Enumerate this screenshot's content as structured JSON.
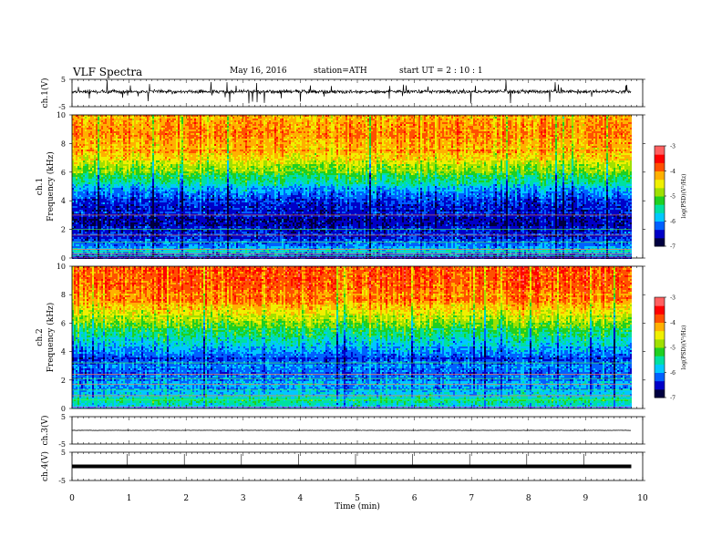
{
  "header": {
    "title": "VLF Spectra",
    "date": "May 16, 2016",
    "station": "station=ATH",
    "start": "start  UT =   2 : 10 : 1"
  },
  "chart_data": [
    {
      "type": "line",
      "name": "ch1-waveform",
      "ylabel": "ch.1(V)",
      "ylim": [
        -5,
        5
      ],
      "yticks": [
        "5",
        "-5"
      ],
      "xlim": [
        0,
        10
      ],
      "description_level_V": 0.5
    },
    {
      "type": "heatmap",
      "name": "ch1-spectrogram",
      "ylabel": "ch.1\nFrequency  (kHz)",
      "ylim": [
        0,
        10
      ],
      "yticks": [
        "0",
        "2",
        "4",
        "6",
        "8",
        "10"
      ],
      "xlim": [
        0,
        10
      ],
      "colorbar": {
        "label": "log(PSD)(V²/Hz)",
        "range": [
          -7,
          -3
        ],
        "ticks": [
          "-3",
          "-4",
          "-5",
          "-6",
          "-7"
        ]
      },
      "profile_freq_kHz": [
        0,
        0.5,
        1,
        1.5,
        2,
        2.5,
        3,
        3.5,
        4,
        4.5,
        5,
        5.5,
        6,
        6.5,
        7,
        7.5,
        8,
        8.5,
        9,
        9.5,
        10
      ],
      "profile_logPSD": [
        -6.4,
        -5.8,
        -6.2,
        -6.3,
        -6.5,
        -6.6,
        -6.5,
        -6.4,
        -6.3,
        -6.1,
        -5.8,
        -5.4,
        -5.0,
        -4.7,
        -4.4,
        -4.2,
        -4.1,
        -4.0,
        -4.0,
        -4.1,
        -4.1
      ]
    },
    {
      "type": "heatmap",
      "name": "ch2-spectrogram",
      "ylabel": "ch.2\nFrequency  (kHz)",
      "ylim": [
        0,
        10
      ],
      "yticks": [
        "0",
        "2",
        "4",
        "6",
        "8",
        "10"
      ],
      "xlim": [
        0,
        10
      ],
      "colorbar": {
        "label": "log(PSD)(V²/Hz)",
        "range": [
          -7,
          -3
        ],
        "ticks": [
          "-3",
          "-4",
          "-5",
          "-6",
          "-7"
        ]
      },
      "profile_freq_kHz": [
        0,
        0.5,
        1,
        1.5,
        2,
        2.5,
        3,
        3.5,
        4,
        4.5,
        5,
        5.5,
        6,
        6.5,
        7,
        7.5,
        8,
        8.5,
        9,
        9.5,
        10
      ],
      "profile_logPSD": [
        -5.9,
        -5.4,
        -5.8,
        -5.9,
        -6.0,
        -6.1,
        -6.0,
        -6.3,
        -5.9,
        -5.7,
        -5.5,
        -5.2,
        -4.9,
        -4.6,
        -4.3,
        -4.1,
        -3.9,
        -3.8,
        -3.8,
        -3.8,
        -3.9
      ]
    },
    {
      "type": "line",
      "name": "ch3-waveform",
      "ylabel": "ch.3(V)",
      "ylim": [
        -5,
        5
      ],
      "yticks": [
        "5",
        "-5"
      ],
      "xlim": [
        0,
        10
      ],
      "description_level_V": 0.0
    },
    {
      "type": "line",
      "name": "ch4-waveform",
      "ylabel": "ch.4(V)",
      "ylim": [
        -5,
        5
      ],
      "yticks": [
        "5",
        "-5"
      ],
      "xlim": [
        0,
        10
      ],
      "description_level_V": 0.0
    },
    {
      "type": "axis",
      "name": "time-axis",
      "xlabel": "Time  (min)",
      "xlim": [
        0,
        10
      ],
      "xticks": [
        "0",
        "1",
        "2",
        "3",
        "4",
        "5",
        "6",
        "7",
        "8",
        "9",
        "10"
      ],
      "data_end_min": 9.8
    }
  ],
  "colors": {
    "scale": [
      "#000040",
      "#0000c8",
      "#0060ff",
      "#00c8ff",
      "#00e0a0",
      "#20d020",
      "#a0e000",
      "#f0f000",
      "#ffb000",
      "#ff5000",
      "#ff0000",
      "#ff6060",
      "#ffffff"
    ]
  }
}
